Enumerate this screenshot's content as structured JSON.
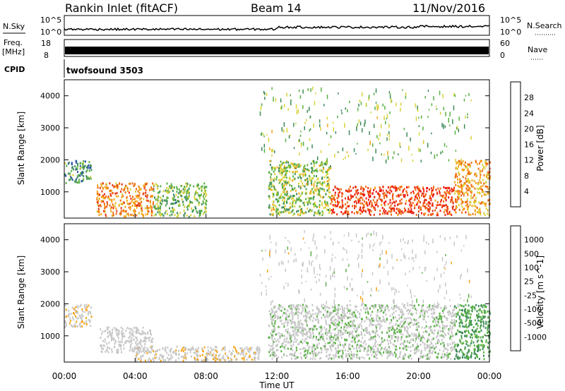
{
  "header": {
    "station": "Rankin Inlet (fitACF)",
    "beam": "Beam 14",
    "date": "11/Nov/2016"
  },
  "param_panels": {
    "nsky_label": "N.Sky",
    "nsearch_label": "N.Search",
    "noise_ticks": [
      "10^5",
      "10^0"
    ],
    "noise_ticks_right": [
      "10^5",
      "10^0"
    ],
    "freq_label": "Freq.",
    "freq_unit": "[MHz]",
    "freq_ticks": [
      "18",
      "8"
    ],
    "nave_label": "Nave",
    "nave_ticks": [
      "60",
      "0"
    ],
    "cpid_label": "CPID",
    "cpid_value": "twofsound 3503"
  },
  "x_axis": {
    "label": "Time UT",
    "ticks": [
      "00:00",
      "04:00",
      "08:00",
      "12:00",
      "16:00",
      "20:00",
      "00:00"
    ]
  },
  "colors": {
    "power_scale": [
      "#1f1fff",
      "#2a52b4",
      "#3d8a5a",
      "#58b043",
      "#d8d23a",
      "#f5a51a",
      "#f06a10",
      "#e83010",
      "#f0100f"
    ],
    "velocity_scale": [
      "#f01010",
      "#f05a10",
      "#f5a51a",
      "#c8c8c8",
      "#58b043",
      "#3d8a5a",
      "#2a52b4"
    ]
  },
  "chart_data": [
    {
      "type": "heatmap",
      "title": "Power",
      "ylabel": "Slant Range [km]",
      "xlabel": "Time UT",
      "xlim": [
        0,
        24
      ],
      "ylim": [
        180,
        4500
      ],
      "yticks": [
        "1000",
        "2000",
        "3000",
        "4000"
      ],
      "colorbar": {
        "label": "Power [dB]",
        "range": [
          0,
          32
        ],
        "ticks": [
          "4",
          "8",
          "12",
          "16",
          "20",
          "24",
          "28"
        ]
      },
      "regions": [
        {
          "t": [
            0.0,
            1.5
          ],
          "r": [
            1300,
            2000
          ],
          "power_db": 10
        },
        {
          "t": [
            1.8,
            5.0
          ],
          "r": [
            250,
            1300
          ],
          "power_db": 22
        },
        {
          "t": [
            5.0,
            8.0
          ],
          "r": [
            250,
            1300
          ],
          "power_db": 12
        },
        {
          "t": [
            11.5,
            15.0
          ],
          "r": [
            300,
            2000
          ],
          "power_db": 14
        },
        {
          "t": [
            15.0,
            22.0
          ],
          "r": [
            300,
            1200
          ],
          "power_db": 26
        },
        {
          "t": [
            22.0,
            24.0
          ],
          "r": [
            300,
            2000
          ],
          "power_db": 20
        }
      ]
    },
    {
      "type": "heatmap",
      "title": "Velocity",
      "ylabel": "Slant Range [km]",
      "xlabel": "Time UT",
      "xlim": [
        0,
        24
      ],
      "ylim": [
        180,
        4500
      ],
      "yticks": [
        "1000",
        "2000",
        "3000",
        "4000"
      ],
      "colorbar": {
        "label": "Velocity [m s^-1]",
        "range": [
          -1200,
          1200
        ],
        "ticks": [
          "1000",
          "500",
          "100",
          "25",
          "-25",
          "-100",
          "-500",
          "-1000"
        ]
      },
      "regions": [
        {
          "t": [
            0.0,
            1.5
          ],
          "r": [
            1300,
            2000
          ],
          "velocity": 100
        },
        {
          "t": [
            2.0,
            5.0
          ],
          "r": [
            500,
            1300
          ],
          "velocity": 0
        },
        {
          "t": [
            4.0,
            11.0
          ],
          "r": [
            250,
            700
          ],
          "velocity": 100
        },
        {
          "t": [
            11.5,
            22.0
          ],
          "r": [
            300,
            2000
          ],
          "velocity": -100
        },
        {
          "t": [
            22.0,
            24.0
          ],
          "r": [
            300,
            2000
          ],
          "velocity": -500
        }
      ]
    }
  ]
}
